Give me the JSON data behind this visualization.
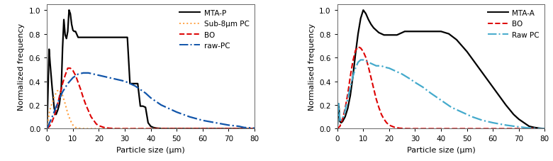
{
  "left": {
    "ylabel": "Normalized frequency",
    "xlabel": "Particle size (μm)",
    "xlim": [
      0,
      80
    ],
    "ylim": [
      0,
      1.05
    ],
    "xticks": [
      0,
      10,
      20,
      30,
      40,
      50,
      60,
      70,
      80
    ],
    "yticks": [
      0,
      0.2,
      0.4,
      0.6,
      0.8,
      1
    ],
    "series": {
      "MTA-P": {
        "color": "#000000",
        "linestyle": "-",
        "linewidth": 1.6,
        "points_x": [
          0,
          0.8,
          1.2,
          2.0,
          2.8,
          3.5,
          4.2,
          4.8,
          5.5,
          6.0,
          6.5,
          7.0,
          7.5,
          8.0,
          8.5,
          9.0,
          9.5,
          10.0,
          10.5,
          11.0,
          12.0,
          13.0,
          14.0,
          15.0,
          16.0,
          17.0,
          18.0,
          19.0,
          20.0,
          21.0,
          22.0,
          23.0,
          24.0,
          25.0,
          26.0,
          27.0,
          28.0,
          29.0,
          30.0,
          31.0,
          32.0,
          33.0,
          34.0,
          35.0,
          36.0,
          37.0,
          38.0,
          39.0,
          40.0,
          41.0,
          42.0,
          43.0,
          44.0,
          45.0,
          46.0,
          47.0,
          48.0,
          80
        ],
        "points_y": [
          0.0,
          0.67,
          0.55,
          0.34,
          0.17,
          0.12,
          0.16,
          0.21,
          0.34,
          0.68,
          0.92,
          0.79,
          0.76,
          0.82,
          1.0,
          0.97,
          0.88,
          0.83,
          0.82,
          0.82,
          0.77,
          0.77,
          0.77,
          0.77,
          0.77,
          0.77,
          0.77,
          0.77,
          0.77,
          0.77,
          0.77,
          0.77,
          0.77,
          0.77,
          0.77,
          0.77,
          0.77,
          0.77,
          0.77,
          0.77,
          0.38,
          0.38,
          0.38,
          0.38,
          0.19,
          0.19,
          0.18,
          0.05,
          0.02,
          0.01,
          0.005,
          0.003,
          0.001,
          0.0,
          0.0,
          0.0,
          0.0,
          0.0
        ]
      },
      "Sub-8um PC": {
        "color": "#FFA040",
        "linestyle": ":",
        "linewidth": 1.5,
        "points_x": [
          0,
          1,
          2,
          3,
          4,
          5,
          6,
          7,
          8,
          9,
          10,
          11,
          12,
          13,
          14,
          15,
          80
        ],
        "points_y": [
          0,
          0.15,
          0.22,
          0.28,
          0.32,
          0.32,
          0.28,
          0.21,
          0.13,
          0.07,
          0.03,
          0.01,
          0.005,
          0.002,
          0.001,
          0.0,
          0.0
        ]
      },
      "BO": {
        "color": "#DD0000",
        "linestyle": "--",
        "linewidth": 1.5,
        "points_x": [
          0,
          1,
          2,
          3,
          4,
          5,
          6,
          7,
          8,
          9,
          10,
          11,
          12,
          13,
          14,
          15,
          16,
          17,
          18,
          19,
          20,
          22,
          24,
          26,
          28,
          30,
          32,
          35,
          40,
          80
        ],
        "points_y": [
          0,
          0.02,
          0.06,
          0.12,
          0.2,
          0.29,
          0.38,
          0.45,
          0.51,
          0.51,
          0.49,
          0.45,
          0.39,
          0.33,
          0.26,
          0.2,
          0.15,
          0.1,
          0.07,
          0.04,
          0.025,
          0.01,
          0.004,
          0.001,
          0.0,
          0.0,
          0.0,
          0.0,
          0.0,
          0.0
        ]
      },
      "raw-PC": {
        "color": "#1155AA",
        "linestyle": "-.",
        "linewidth": 1.6,
        "points_x": [
          0,
          2,
          4,
          6,
          8,
          10,
          12,
          14,
          16,
          18,
          20,
          22,
          24,
          26,
          28,
          30,
          32,
          34,
          36,
          38,
          40,
          42,
          44,
          46,
          48,
          50,
          55,
          60,
          65,
          70,
          72,
          74,
          76,
          80
        ],
        "points_y": [
          0,
          0.1,
          0.21,
          0.31,
          0.38,
          0.43,
          0.46,
          0.47,
          0.47,
          0.46,
          0.45,
          0.44,
          0.43,
          0.42,
          0.41,
          0.4,
          0.38,
          0.36,
          0.33,
          0.3,
          0.26,
          0.23,
          0.2,
          0.18,
          0.16,
          0.14,
          0.1,
          0.07,
          0.05,
          0.03,
          0.025,
          0.02,
          0.01,
          0.005
        ]
      }
    },
    "legend_labels": [
      "MTA-P",
      "Sub-8μm PC",
      "BO",
      "raw-PC"
    ],
    "legend_styles": [
      {
        "color": "#000000",
        "linestyle": "-"
      },
      {
        "color": "#FFA040",
        "linestyle": ":"
      },
      {
        "color": "#DD0000",
        "linestyle": "--"
      },
      {
        "color": "#1155AA",
        "linestyle": "-."
      }
    ]
  },
  "right": {
    "ylabel": "Normalised frequency",
    "xlabel": "Particle size (μm)",
    "xlim": [
      0,
      80
    ],
    "ylim": [
      0,
      1.05
    ],
    "xticks": [
      0,
      10,
      20,
      30,
      40,
      50,
      60,
      70,
      80
    ],
    "yticks": [
      0,
      0.2,
      0.4,
      0.6,
      0.8,
      1
    ],
    "series": {
      "MTA-A": {
        "color": "#000000",
        "linestyle": "-",
        "linewidth": 1.6,
        "points_x": [
          0,
          0.5,
          0.8,
          1.0,
          1.5,
          2.0,
          3.0,
          4.0,
          5.0,
          6.0,
          7.0,
          8.0,
          9.0,
          10.0,
          11.0,
          12.0,
          13.0,
          14.0,
          15.0,
          16.0,
          17.0,
          18.0,
          19.0,
          20.0,
          21.0,
          22.0,
          23.0,
          24.0,
          25.0,
          26.0,
          27.0,
          28.0,
          29.0,
          30.0,
          32.0,
          35.0,
          38.0,
          40.0,
          43.0,
          46.0,
          50.0,
          55.0,
          60.0,
          65.0,
          68.0,
          70.0,
          72.0,
          74.0,
          76.0,
          78.0,
          80.0
        ],
        "points_y": [
          0.0,
          0.21,
          0.12,
          0.06,
          0.05,
          0.06,
          0.1,
          0.17,
          0.28,
          0.44,
          0.63,
          0.8,
          0.93,
          1.0,
          0.97,
          0.92,
          0.88,
          0.85,
          0.83,
          0.81,
          0.8,
          0.79,
          0.79,
          0.79,
          0.79,
          0.79,
          0.79,
          0.8,
          0.81,
          0.82,
          0.82,
          0.82,
          0.82,
          0.82,
          0.82,
          0.82,
          0.82,
          0.82,
          0.8,
          0.75,
          0.65,
          0.5,
          0.35,
          0.2,
          0.12,
          0.08,
          0.05,
          0.02,
          0.01,
          0.004,
          0.0
        ]
      },
      "BO": {
        "color": "#DD0000",
        "linestyle": "--",
        "linewidth": 1.5,
        "points_x": [
          0,
          1,
          2,
          3,
          4,
          5,
          6,
          7,
          8,
          9,
          10,
          11,
          12,
          13,
          14,
          15,
          16,
          17,
          18,
          19,
          20,
          22,
          24,
          26,
          28,
          30,
          35,
          40,
          80
        ],
        "points_y": [
          0,
          0.02,
          0.08,
          0.17,
          0.29,
          0.44,
          0.57,
          0.66,
          0.69,
          0.68,
          0.65,
          0.6,
          0.52,
          0.43,
          0.34,
          0.25,
          0.18,
          0.12,
          0.08,
          0.05,
          0.03,
          0.012,
          0.004,
          0.001,
          0.0,
          0.0,
          0.0,
          0.0,
          0.0
        ]
      },
      "Raw PC": {
        "color": "#44AACC",
        "linestyle": "-.",
        "linewidth": 1.6,
        "points_x": [
          0,
          0.5,
          0.8,
          1.0,
          2.0,
          3.0,
          4.0,
          5.0,
          6.0,
          7.0,
          8.0,
          9.0,
          10.0,
          11.0,
          12.0,
          13.0,
          14.0,
          15.0,
          16.0,
          17.0,
          18.0,
          20.0,
          22.0,
          25.0,
          28.0,
          30.0,
          33.0,
          36.0,
          40.0,
          44.0,
          48.0,
          52.0,
          56.0,
          60.0,
          65.0,
          70.0,
          73.0,
          75.0,
          78.0,
          80.0
        ],
        "points_y": [
          0,
          0.21,
          0.12,
          0.07,
          0.08,
          0.15,
          0.25,
          0.35,
          0.44,
          0.51,
          0.56,
          0.58,
          0.58,
          0.57,
          0.56,
          0.55,
          0.54,
          0.53,
          0.53,
          0.53,
          0.52,
          0.51,
          0.49,
          0.46,
          0.42,
          0.39,
          0.35,
          0.3,
          0.24,
          0.18,
          0.14,
          0.1,
          0.07,
          0.05,
          0.03,
          0.015,
          0.008,
          0.004,
          0.001,
          0.0
        ]
      }
    },
    "legend_labels": [
      "MTA-A",
      "BO",
      "Raw PC"
    ],
    "legend_styles": [
      {
        "color": "#000000",
        "linestyle": "-"
      },
      {
        "color": "#DD0000",
        "linestyle": "--"
      },
      {
        "color": "#44AACC",
        "linestyle": "-."
      }
    ]
  }
}
